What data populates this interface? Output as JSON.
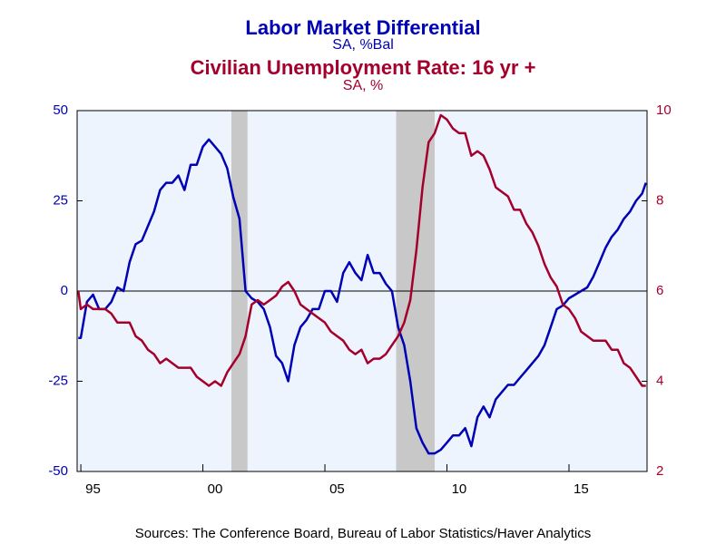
{
  "chart_data": {
    "type": "line",
    "titles": [
      {
        "text": "Labor Market Differential",
        "color": "#0000b4"
      },
      {
        "text": "SA, %Bal",
        "color": "#0000b4"
      },
      {
        "text": "Civilian Unemployment Rate: 16 yr +",
        "color": "#a4002c"
      },
      {
        "text": "SA, %",
        "color": "#a4002c"
      }
    ],
    "source": "Sources:  The Conference Board, Bureau of Labor Statistics/Haver Analytics",
    "x": [
      1994.9,
      1995.0,
      1995.25,
      1995.5,
      1995.75,
      1996.0,
      1996.25,
      1996.5,
      1996.75,
      1997.0,
      1997.25,
      1997.5,
      1997.75,
      1998.0,
      1998.25,
      1998.5,
      1998.75,
      1999.0,
      1999.25,
      1999.5,
      1999.75,
      2000.0,
      2000.25,
      2000.5,
      2000.75,
      2001.0,
      2001.25,
      2001.5,
      2001.75,
      2002.0,
      2002.25,
      2002.5,
      2002.75,
      2003.0,
      2003.25,
      2003.5,
      2003.75,
      2004.0,
      2004.25,
      2004.5,
      2004.75,
      2005.0,
      2005.25,
      2005.5,
      2005.75,
      2006.0,
      2006.25,
      2006.5,
      2006.75,
      2007.0,
      2007.25,
      2007.5,
      2007.75,
      2008.0,
      2008.25,
      2008.5,
      2008.75,
      2009.0,
      2009.25,
      2009.5,
      2009.75,
      2010.0,
      2010.25,
      2010.5,
      2010.75,
      2011.0,
      2011.25,
      2011.5,
      2011.75,
      2012.0,
      2012.25,
      2012.5,
      2012.75,
      2013.0,
      2013.25,
      2013.5,
      2013.75,
      2014.0,
      2014.25,
      2014.5,
      2014.75,
      2015.0,
      2015.25,
      2015.5,
      2015.75,
      2016.0,
      2016.25,
      2016.5,
      2016.75,
      2017.0,
      2017.25,
      2017.5,
      2017.75,
      2018.0,
      2018.15
    ],
    "series": [
      {
        "name": "Labor Market Differential",
        "color": "#0000b4",
        "axis": "y",
        "values": [
          -13,
          -13,
          -3,
          -1,
          -5,
          -5,
          -3,
          1,
          0,
          8,
          13,
          14,
          18,
          22,
          28,
          30,
          30,
          32,
          28,
          35,
          35,
          40,
          42,
          40,
          38,
          34,
          26,
          20,
          0,
          -2,
          -3,
          -5,
          -10,
          -18,
          -20,
          -25,
          -15,
          -10,
          -8,
          -5,
          -5,
          0,
          0,
          -3,
          5,
          8,
          5,
          3,
          10,
          5,
          5,
          2,
          0,
          -10,
          -15,
          -25,
          -38,
          -42,
          -45,
          -45,
          -44,
          -42,
          -40,
          -40,
          -38,
          -43,
          -35,
          -32,
          -35,
          -30,
          -28,
          -26,
          -26,
          -24,
          -22,
          -20,
          -18,
          -15,
          -10,
          -5,
          -4,
          -2,
          -1,
          0,
          1,
          4,
          8,
          12,
          15,
          17,
          20,
          22,
          25,
          27,
          30
        ]
      },
      {
        "name": "Civilian Unemployment Rate: 16 yr +",
        "color": "#a4002c",
        "axis": "y2",
        "values": [
          6.0,
          5.6,
          5.7,
          5.6,
          5.6,
          5.6,
          5.5,
          5.3,
          5.3,
          5.3,
          5.0,
          4.9,
          4.7,
          4.6,
          4.4,
          4.5,
          4.4,
          4.3,
          4.3,
          4.3,
          4.1,
          4.0,
          3.9,
          4.0,
          3.9,
          4.2,
          4.4,
          4.6,
          5.0,
          5.7,
          5.8,
          5.7,
          5.8,
          5.9,
          6.1,
          6.2,
          6.0,
          5.7,
          5.6,
          5.5,
          5.4,
          5.3,
          5.1,
          5.0,
          4.9,
          4.7,
          4.6,
          4.7,
          4.4,
          4.5,
          4.5,
          4.6,
          4.8,
          5.0,
          5.3,
          5.8,
          6.9,
          8.3,
          9.3,
          9.5,
          9.9,
          9.8,
          9.6,
          9.5,
          9.5,
          9.0,
          9.1,
          9.0,
          8.7,
          8.3,
          8.2,
          8.1,
          7.8,
          7.8,
          7.5,
          7.3,
          7.0,
          6.6,
          6.3,
          6.1,
          5.7,
          5.6,
          5.4,
          5.1,
          5.0,
          4.9,
          4.9,
          4.9,
          4.7,
          4.7,
          4.4,
          4.3,
          4.1,
          3.9,
          3.9
        ]
      }
    ],
    "xlim": [
      1994.85,
      2018.2
    ],
    "xticks": [
      {
        "value": 1995.5,
        "label": "95"
      },
      {
        "value": 2000.5,
        "label": "00"
      },
      {
        "value": 2005.5,
        "label": "05"
      },
      {
        "value": 2010.5,
        "label": "10"
      },
      {
        "value": 2015.5,
        "label": "15"
      }
    ],
    "ylim": [
      -50,
      50
    ],
    "yticks": [
      -50,
      -25,
      0,
      25,
      50
    ],
    "y2lim": [
      2,
      10
    ],
    "y2ticks": [
      2,
      4,
      6,
      8,
      10
    ],
    "shaded_periods": [
      [
        2001.17,
        2001.83
      ],
      [
        2007.92,
        2009.5
      ]
    ],
    "zero_line": true
  }
}
